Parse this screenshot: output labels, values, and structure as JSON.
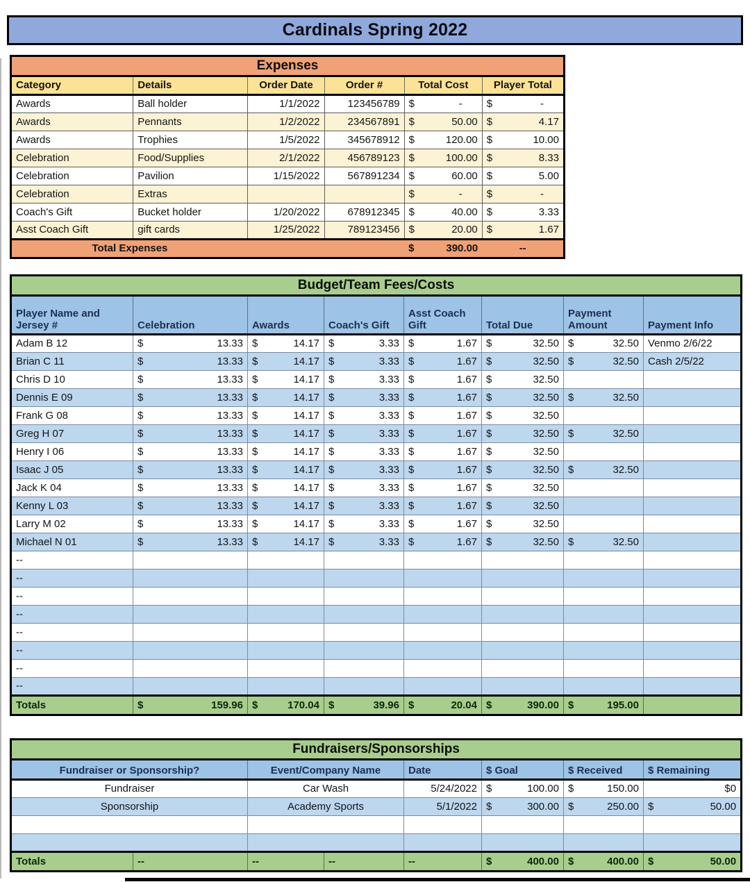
{
  "currency": "$",
  "title": "Cardinals Spring 2022",
  "expenses": {
    "title": "Expenses",
    "headers": [
      "Category",
      "Details",
      "Order Date",
      "Order #",
      "Total Cost",
      "Player Total"
    ],
    "rows": [
      {
        "category": "Awards",
        "details": "Ball holder",
        "order_date": "1/1/2022",
        "order_num": "123456789",
        "total_cost": "-",
        "player_total": "-"
      },
      {
        "category": "Awards",
        "details": "Pennants",
        "order_date": "1/2/2022",
        "order_num": "234567891",
        "total_cost": "50.00",
        "player_total": "4.17"
      },
      {
        "category": "Awards",
        "details": "Trophies",
        "order_date": "1/5/2022",
        "order_num": "345678912",
        "total_cost": "120.00",
        "player_total": "10.00"
      },
      {
        "category": "Celebration",
        "details": "Food/Supplies",
        "order_date": "2/1/2022",
        "order_num": "456789123",
        "total_cost": "100.00",
        "player_total": "8.33"
      },
      {
        "category": "Celebration",
        "details": "Pavilion",
        "order_date": "1/15/2022",
        "order_num": "567891234",
        "total_cost": "60.00",
        "player_total": "5.00"
      },
      {
        "category": "Celebration",
        "details": "Extras",
        "order_date": "",
        "order_num": "",
        "total_cost": "-",
        "player_total": "-"
      },
      {
        "category": "Coach's Gift",
        "details": "Bucket holder",
        "order_date": "1/20/2022",
        "order_num": "678912345",
        "total_cost": "40.00",
        "player_total": "3.33"
      },
      {
        "category": "Asst Coach Gift",
        "details": "gift cards",
        "order_date": "1/25/2022",
        "order_num": "789123456",
        "total_cost": "20.00",
        "player_total": "1.67"
      }
    ],
    "total_label": "Total Expenses",
    "total_cost": "390.00",
    "total_player": "--"
  },
  "budget": {
    "title": "Budget/Team Fees/Costs",
    "headers": [
      "Player Name and\nJersey #",
      "Celebration",
      "Awards",
      "Coach's Gift",
      "Asst Coach\nGift",
      "Total Due",
      "Payment\nAmount",
      "Payment Info"
    ],
    "rows": [
      {
        "name": "Adam B 12",
        "celebration": "13.33",
        "awards": "14.17",
        "coach_gift": "3.33",
        "asst_gift": "1.67",
        "total_due": "32.50",
        "payment_amount": "32.50",
        "payment_info": "Venmo 2/6/22"
      },
      {
        "name": "Brian C  11",
        "celebration": "13.33",
        "awards": "14.17",
        "coach_gift": "3.33",
        "asst_gift": "1.67",
        "total_due": "32.50",
        "payment_amount": "32.50",
        "payment_info": "Cash 2/5/22"
      },
      {
        "name": "Chris D  10",
        "celebration": "13.33",
        "awards": "14.17",
        "coach_gift": "3.33",
        "asst_gift": "1.67",
        "total_due": "32.50",
        "payment_amount": "",
        "payment_info": ""
      },
      {
        "name": "Dennis E  09",
        "celebration": "13.33",
        "awards": "14.17",
        "coach_gift": "3.33",
        "asst_gift": "1.67",
        "total_due": "32.50",
        "payment_amount": "32.50",
        "payment_info": ""
      },
      {
        "name": "Frank G  08",
        "celebration": "13.33",
        "awards": "14.17",
        "coach_gift": "3.33",
        "asst_gift": "1.67",
        "total_due": "32.50",
        "payment_amount": "",
        "payment_info": ""
      },
      {
        "name": "Greg H  07",
        "celebration": "13.33",
        "awards": "14.17",
        "coach_gift": "3.33",
        "asst_gift": "1.67",
        "total_due": "32.50",
        "payment_amount": "32.50",
        "payment_info": ""
      },
      {
        "name": "Henry I  06",
        "celebration": "13.33",
        "awards": "14.17",
        "coach_gift": "3.33",
        "asst_gift": "1.67",
        "total_due": "32.50",
        "payment_amount": "",
        "payment_info": ""
      },
      {
        "name": "Isaac J  05",
        "celebration": "13.33",
        "awards": "14.17",
        "coach_gift": "3.33",
        "asst_gift": "1.67",
        "total_due": "32.50",
        "payment_amount": "32.50",
        "payment_info": ""
      },
      {
        "name": "Jack K  04",
        "celebration": "13.33",
        "awards": "14.17",
        "coach_gift": "3.33",
        "asst_gift": "1.67",
        "total_due": "32.50",
        "payment_amount": "",
        "payment_info": ""
      },
      {
        "name": "Kenny L  03",
        "celebration": "13.33",
        "awards": "14.17",
        "coach_gift": "3.33",
        "asst_gift": "1.67",
        "total_due": "32.50",
        "payment_amount": "",
        "payment_info": ""
      },
      {
        "name": "Larry M  02",
        "celebration": "13.33",
        "awards": "14.17",
        "coach_gift": "3.33",
        "asst_gift": "1.67",
        "total_due": "32.50",
        "payment_amount": "",
        "payment_info": ""
      },
      {
        "name": "Michael N  01",
        "celebration": "13.33",
        "awards": "14.17",
        "coach_gift": "3.33",
        "asst_gift": "1.67",
        "total_due": "32.50",
        "payment_amount": "32.50",
        "payment_info": ""
      },
      {
        "name": "--",
        "celebration": "",
        "awards": "",
        "coach_gift": "",
        "asst_gift": "",
        "total_due": "",
        "payment_amount": "",
        "payment_info": ""
      },
      {
        "name": "--",
        "celebration": "",
        "awards": "",
        "coach_gift": "",
        "asst_gift": "",
        "total_due": "",
        "payment_amount": "",
        "payment_info": ""
      },
      {
        "name": "--",
        "celebration": "",
        "awards": "",
        "coach_gift": "",
        "asst_gift": "",
        "total_due": "",
        "payment_amount": "",
        "payment_info": ""
      },
      {
        "name": "--",
        "celebration": "",
        "awards": "",
        "coach_gift": "",
        "asst_gift": "",
        "total_due": "",
        "payment_amount": "",
        "payment_info": ""
      },
      {
        "name": "--",
        "celebration": "",
        "awards": "",
        "coach_gift": "",
        "asst_gift": "",
        "total_due": "",
        "payment_amount": "",
        "payment_info": ""
      },
      {
        "name": "--",
        "celebration": "",
        "awards": "",
        "coach_gift": "",
        "asst_gift": "",
        "total_due": "",
        "payment_amount": "",
        "payment_info": ""
      },
      {
        "name": "--",
        "celebration": "",
        "awards": "",
        "coach_gift": "",
        "asst_gift": "",
        "total_due": "",
        "payment_amount": "",
        "payment_info": ""
      },
      {
        "name": "--",
        "celebration": "",
        "awards": "",
        "coach_gift": "",
        "asst_gift": "",
        "total_due": "",
        "payment_amount": "",
        "payment_info": ""
      }
    ],
    "totals": {
      "label": "Totals",
      "celebration": "159.96",
      "awards": "170.04",
      "coach_gift": "39.96",
      "asst_gift": "20.04",
      "total_due": "390.00",
      "payment_amount": "195.00",
      "payment_info": ""
    }
  },
  "fundraisers": {
    "title": "Fundraisers/Sponsorships",
    "headers": [
      "Fundraiser or Sponsorship?",
      "Event/Company Name",
      "Date",
      "$ Goal",
      "$ Received",
      "$ Remaining"
    ],
    "rows": [
      {
        "type": "Fundraiser",
        "name": "Car Wash",
        "date": "5/24/2022",
        "goal": "100.00",
        "received": "150.00",
        "remaining": "$0"
      },
      {
        "type": "Sponsorship",
        "name": "Academy Sports",
        "date": "5/1/2022",
        "goal": "300.00",
        "received": "250.00",
        "remaining": "50.00"
      },
      {
        "type": "",
        "name": "",
        "date": "",
        "goal": "",
        "received": "",
        "remaining": ""
      },
      {
        "type": "",
        "name": "",
        "date": "",
        "goal": "",
        "received": "",
        "remaining": ""
      }
    ],
    "totals": {
      "label": "Totals",
      "b": "--",
      "c": "--",
      "d": "--",
      "e": "--",
      "goal": "400.00",
      "received": "400.00",
      "remaining": "50.00"
    }
  },
  "colors": {
    "title_bar": "#8FA9DC",
    "expenses_accent": "#F0A176",
    "expenses_header": "#FBE296",
    "expenses_alt_row": "#FCF2D4",
    "section_green": "#A7CE8D",
    "blue_header": "#9DC3E6",
    "blue_alt_row": "#BDD7EE"
  }
}
